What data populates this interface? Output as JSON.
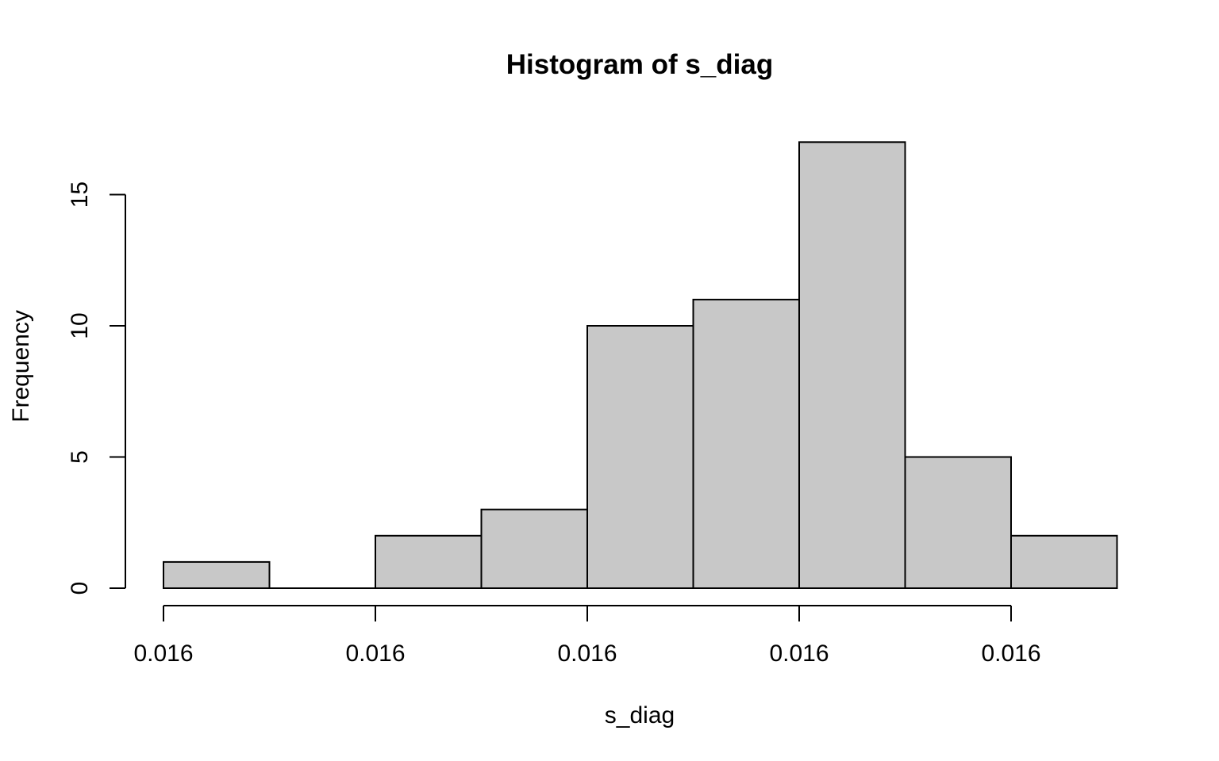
{
  "chart_data": {
    "type": "histogram",
    "title": "Histogram of s_diag",
    "xlabel": "s_diag",
    "ylabel": "Frequency",
    "bins": 9,
    "frequencies": [
      1,
      0,
      2,
      3,
      10,
      11,
      17,
      5,
      2
    ],
    "x_tick_labels": [
      "0.016",
      "0.016",
      "0.016",
      "0.016",
      "0.016"
    ],
    "y_ticks": [
      0,
      5,
      10,
      15
    ],
    "ylim": [
      0,
      17
    ],
    "colors": {
      "bar_fill": "#c8c8c8",
      "stroke": "#000000"
    }
  }
}
